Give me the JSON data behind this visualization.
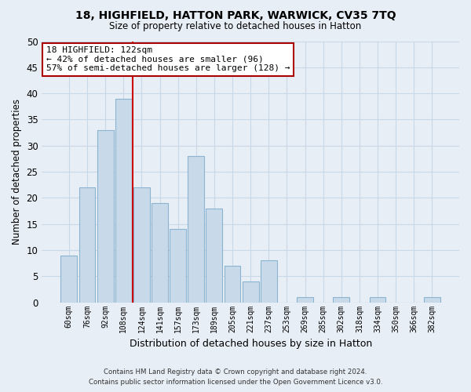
{
  "title1": "18, HIGHFIELD, HATTON PARK, WARWICK, CV35 7TQ",
  "title2": "Size of property relative to detached houses in Hatton",
  "xlabel": "Distribution of detached houses by size in Hatton",
  "ylabel": "Number of detached properties",
  "bar_labels": [
    "60sqm",
    "76sqm",
    "92sqm",
    "108sqm",
    "124sqm",
    "141sqm",
    "157sqm",
    "173sqm",
    "189sqm",
    "205sqm",
    "221sqm",
    "237sqm",
    "253sqm",
    "269sqm",
    "285sqm",
    "302sqm",
    "318sqm",
    "334sqm",
    "350sqm",
    "366sqm",
    "382sqm"
  ],
  "bar_values": [
    9,
    22,
    33,
    39,
    22,
    19,
    14,
    28,
    18,
    7,
    4,
    8,
    0,
    1,
    0,
    1,
    0,
    1,
    0,
    0,
    1
  ],
  "bar_color": "#c8daea",
  "bar_edge_color": "#8ab4d0",
  "vline_color": "#cc0000",
  "ylim": [
    0,
    50
  ],
  "yticks": [
    0,
    5,
    10,
    15,
    20,
    25,
    30,
    35,
    40,
    45,
    50
  ],
  "annotation_title": "18 HIGHFIELD: 122sqm",
  "annotation_line1": "← 42% of detached houses are smaller (96)",
  "annotation_line2": "57% of semi-detached houses are larger (128) →",
  "annotation_box_color": "#ffffff",
  "annotation_box_edge": "#aa0000",
  "footer1": "Contains HM Land Registry data © Crown copyright and database right 2024.",
  "footer2": "Contains public sector information licensed under the Open Government Licence v3.0.",
  "grid_color": "#c8d8e8",
  "background_color": "#e8eef5"
}
